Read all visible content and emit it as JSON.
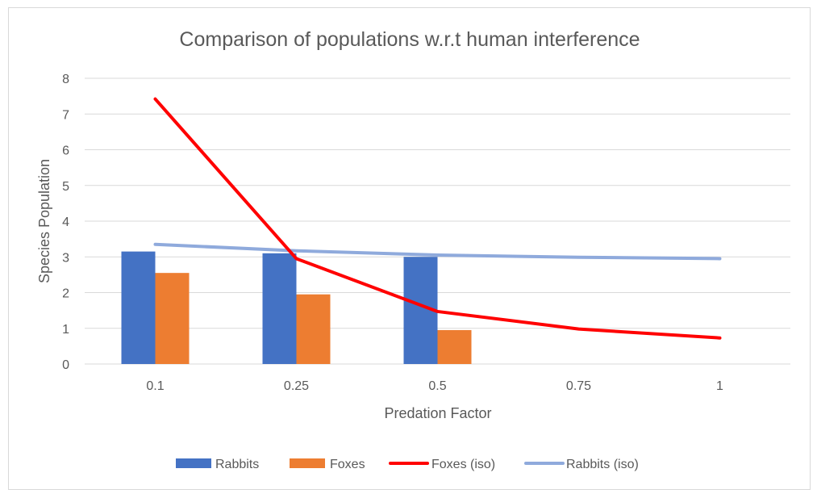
{
  "chart_data": {
    "type": "bar",
    "title": "Comparison of populations w.r.t human interference",
    "xlabel": "Predation Factor",
    "ylabel": "Species Population",
    "categories": [
      "0.1",
      "0.25",
      "0.5",
      "0.75",
      "1"
    ],
    "y_ticks": [
      "0",
      "1",
      "2",
      "3",
      "4",
      "5",
      "6",
      "7",
      "8"
    ],
    "ylim": [
      0,
      8
    ],
    "grid": true,
    "legend_position": "bottom",
    "series": [
      {
        "name": "Rabbits",
        "kind": "bar",
        "color": "#4472c4",
        "values": [
          3.15,
          3.1,
          3.0,
          null,
          null
        ]
      },
      {
        "name": "Foxes",
        "kind": "bar",
        "color": "#ed7d31",
        "values": [
          2.55,
          1.95,
          0.95,
          null,
          null
        ]
      },
      {
        "name": "Foxes (iso)",
        "kind": "line",
        "color": "#ff0000",
        "values": [
          7.42,
          2.95,
          1.47,
          0.98,
          0.73
        ]
      },
      {
        "name": "Rabbits (iso)",
        "kind": "line",
        "color": "#8faadc",
        "values": [
          3.35,
          3.17,
          3.05,
          2.99,
          2.95
        ]
      }
    ]
  }
}
